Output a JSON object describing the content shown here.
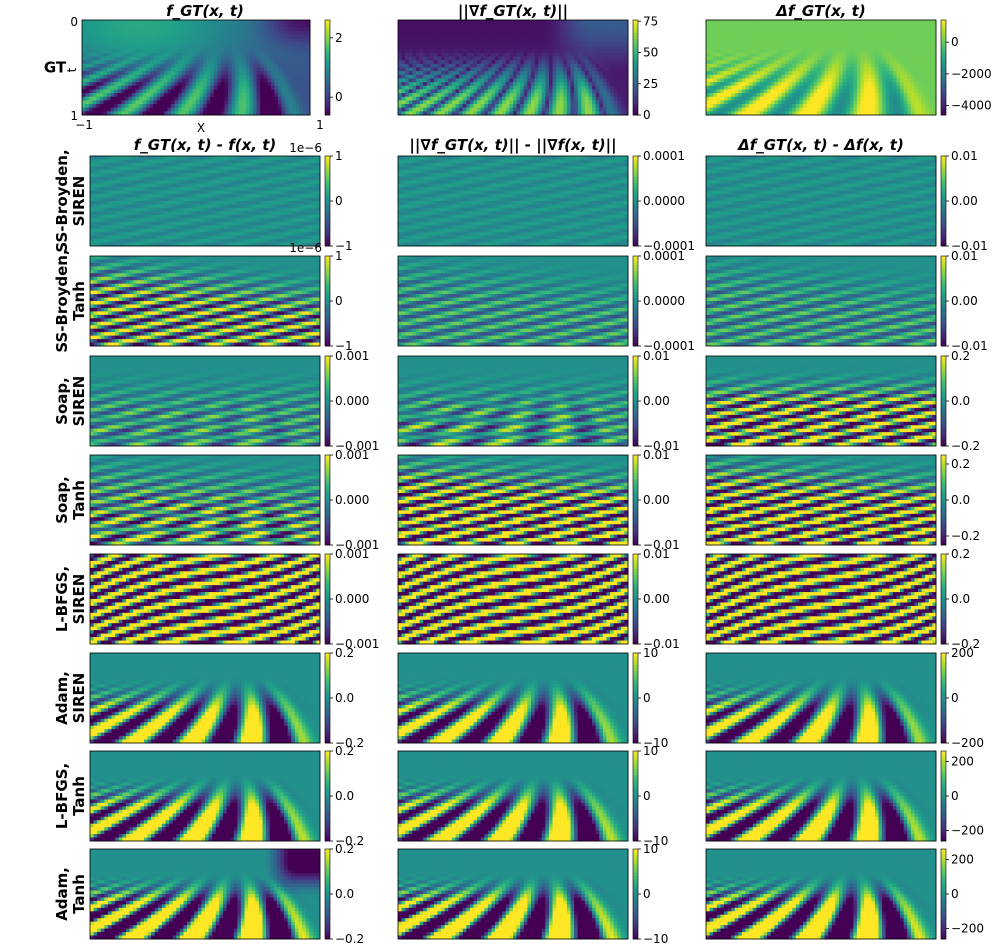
{
  "chart_data": {
    "type": "heatmap",
    "colormap": "viridis",
    "columns": [
      {
        "gt_title": "f_GT(x, t)",
        "err_title": "f_GT(x, t) - f(x, t)"
      },
      {
        "gt_title": "||∇f_GT(x, t)||",
        "err_title": "||∇f_GT(x, t)|| - ||∇f(x, t)||"
      },
      {
        "gt_title": "Δf_GT(x, t)",
        "err_title": "Δf_GT(x, t) - Δf(x, t)"
      }
    ],
    "rows": [
      {
        "label": [
          "GT"
        ],
        "ylabel": "t",
        "yticks": [
          "0",
          "1"
        ],
        "xlabel": "X",
        "xticks": [
          "−1",
          "1"
        ],
        "colorbars": [
          {
            "ticks": [
              "2",
              "0"
            ],
            "range": [
              -0.6,
              2.6
            ]
          },
          {
            "ticks": [
              "75",
              "50",
              "25",
              "0"
            ],
            "range": [
              0,
              76
            ]
          },
          {
            "ticks": [
              "0",
              "−2000",
              "−4000"
            ],
            "range": [
              -4600,
              1400
            ]
          }
        ]
      },
      {
        "label": [
          "SS-Broyden,",
          "SIREN"
        ],
        "scale": "1e−6",
        "colorbars": [
          {
            "ticks": [
              "1",
              "0",
              "−1"
            ],
            "range": [
              -1,
              1
            ]
          },
          {
            "ticks": [
              "0.0001",
              "0.0000",
              "−0.0001"
            ],
            "range": [
              -0.0001,
              0.0001
            ]
          },
          {
            "ticks": [
              "0.01",
              "0.00",
              "−0.01"
            ],
            "range": [
              -0.01,
              0.01
            ]
          }
        ]
      },
      {
        "label": [
          "SS-Broyden,",
          "Tanh"
        ],
        "scale": "1e−6",
        "colorbars": [
          {
            "ticks": [
              "1",
              "0",
              "−1"
            ],
            "range": [
              -1,
              1
            ]
          },
          {
            "ticks": [
              "0.0001",
              "0.0000",
              "−0.0001"
            ],
            "range": [
              -0.0001,
              0.0001
            ]
          },
          {
            "ticks": [
              "0.01",
              "0.00",
              "−0.01"
            ],
            "range": [
              -0.01,
              0.01
            ]
          }
        ]
      },
      {
        "label": [
          "Soap,",
          "SIREN"
        ],
        "colorbars": [
          {
            "ticks": [
              "0.001",
              "0.000",
              "−0.001"
            ],
            "range": [
              -0.001,
              0.001
            ]
          },
          {
            "ticks": [
              "0.01",
              "0.00",
              "−0.01"
            ],
            "range": [
              -0.01,
              0.01
            ]
          },
          {
            "ticks": [
              "0.2",
              "0.0",
              "−0.2"
            ],
            "range": [
              -0.2,
              0.2
            ]
          }
        ]
      },
      {
        "label": [
          "Soap,",
          "Tanh"
        ],
        "colorbars": [
          {
            "ticks": [
              "0.001",
              "0.000",
              "−0.001"
            ],
            "range": [
              -0.001,
              0.001
            ]
          },
          {
            "ticks": [
              "0.01",
              "0.00",
              "−0.01"
            ],
            "range": [
              -0.01,
              0.01
            ]
          },
          {
            "ticks": [
              "0.2",
              "0.0",
              "−0.2"
            ],
            "range": [
              -0.25,
              0.25
            ]
          }
        ]
      },
      {
        "label": [
          "L-BFGS,",
          "SIREN"
        ],
        "colorbars": [
          {
            "ticks": [
              "0.001",
              "0.000",
              "−0.001"
            ],
            "range": [
              -0.001,
              0.001
            ]
          },
          {
            "ticks": [
              "0.01",
              "0.00",
              "−0.01"
            ],
            "range": [
              -0.01,
              0.01
            ]
          },
          {
            "ticks": [
              "0.2",
              "0.0",
              "−0.2"
            ],
            "range": [
              -0.2,
              0.2
            ]
          }
        ]
      },
      {
        "label": [
          "Adam,",
          "SIREN"
        ],
        "colorbars": [
          {
            "ticks": [
              "0.2",
              "0.0",
              "−0.2"
            ],
            "range": [
              -0.2,
              0.2
            ]
          },
          {
            "ticks": [
              "10",
              "0",
              "−10"
            ],
            "range": [
              -10,
              10
            ]
          },
          {
            "ticks": [
              "200",
              "0",
              "−200"
            ],
            "range": [
              -200,
              200
            ]
          }
        ]
      },
      {
        "label": [
          "L-BFGS,",
          "Tanh"
        ],
        "colorbars": [
          {
            "ticks": [
              "0.2",
              "0.0",
              "−0.2"
            ],
            "range": [
              -0.2,
              0.2
            ]
          },
          {
            "ticks": [
              "10",
              "0",
              "−10"
            ],
            "range": [
              -10,
              10
            ]
          },
          {
            "ticks": [
              "200",
              "0",
              "−200"
            ],
            "range": [
              -260,
              260
            ]
          }
        ]
      },
      {
        "label": [
          "Adam,",
          "Tanh"
        ],
        "colorbars": [
          {
            "ticks": [
              "0.2",
              "0.0",
              "−0.2"
            ],
            "range": [
              -0.2,
              0.2
            ]
          },
          {
            "ticks": [
              "10",
              "0",
              "−10"
            ],
            "range": [
              -10,
              10
            ]
          },
          {
            "ticks": [
              "200",
              "0",
              "−200"
            ],
            "range": [
              -260,
              260
            ]
          }
        ]
      }
    ]
  }
}
